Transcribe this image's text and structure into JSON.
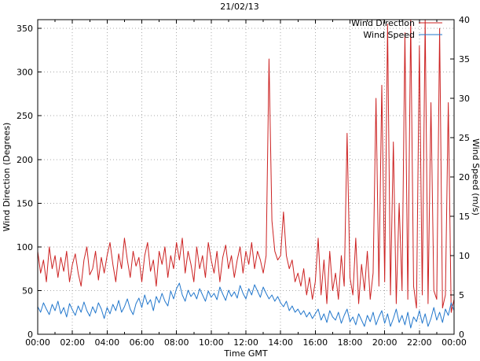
{
  "chart_data": {
    "type": "line",
    "title": "21/02/13",
    "xlabel": "Time GMT",
    "ylabel_left": "Wind Direction (Degrees)",
    "ylabel_right": "Wind Speed (m/s)",
    "grid": true,
    "legend_position": "top-right",
    "background_color": "#ffffff",
    "x_tick_labels": [
      "00:00",
      "02:00",
      "04:00",
      "06:00",
      "08:00",
      "10:00",
      "12:00",
      "14:00",
      "16:00",
      "18:00",
      "20:00",
      "22:00",
      "00:00"
    ],
    "x_minutes_interval": 10,
    "left_axis": {
      "min": 0,
      "max": 360,
      "ticks": [
        0,
        50,
        100,
        150,
        200,
        250,
        300,
        350
      ]
    },
    "right_axis": {
      "min": 0,
      "max": 40,
      "ticks": [
        0,
        5,
        10,
        15,
        20,
        25,
        30,
        35,
        40
      ]
    },
    "series": [
      {
        "name": "Wind Direction",
        "axis": "left",
        "color": "#cc2222",
        "values": [
          95,
          70,
          85,
          60,
          100,
          75,
          90,
          65,
          88,
          72,
          95,
          60,
          80,
          92,
          70,
          55,
          85,
          100,
          68,
          75,
          95,
          62,
          88,
          70,
          90,
          105,
          80,
          60,
          92,
          75,
          110,
          85,
          65,
          95,
          78,
          88,
          60,
          90,
          105,
          72,
          85,
          55,
          95,
          80,
          100,
          65,
          90,
          75,
          105,
          85,
          110,
          70,
          95,
          80,
          60,
          100,
          75,
          90,
          65,
          105,
          85,
          70,
          95,
          60,
          88,
          102,
          75,
          90,
          65,
          85,
          100,
          70,
          95,
          80,
          105,
          75,
          95,
          85,
          70,
          90,
          315,
          130,
          95,
          85,
          90,
          140,
          90,
          75,
          85,
          60,
          70,
          55,
          75,
          45,
          65,
          40,
          60,
          110,
          45,
          85,
          35,
          95,
          50,
          70,
          40,
          90,
          55,
          230,
          65,
          45,
          110,
          35,
          80,
          50,
          95,
          40,
          70,
          270,
          55,
          285,
          60,
          355,
          45,
          220,
          35,
          150,
          50,
          345,
          40,
          360,
          55,
          30,
          330,
          45,
          360,
          35,
          265,
          50,
          40,
          350,
          30,
          45,
          265,
          25,
          40
        ]
      },
      {
        "name": "Wind Speed",
        "axis": "right",
        "color": "#2277cc",
        "values": [
          3.5,
          2.8,
          4.0,
          3.2,
          2.5,
          3.8,
          3.0,
          4.2,
          2.6,
          3.4,
          2.2,
          3.9,
          3.1,
          2.4,
          3.6,
          2.8,
          4.1,
          3.0,
          2.3,
          3.5,
          2.7,
          4.0,
          3.2,
          2.0,
          3.4,
          2.6,
          3.8,
          3.0,
          4.3,
          2.8,
          3.5,
          4.5,
          3.2,
          2.5,
          3.9,
          4.6,
          3.4,
          5.0,
          3.8,
          4.4,
          3.0,
          4.8,
          4.0,
          5.2,
          4.2,
          3.6,
          5.5,
          4.5,
          5.8,
          6.5,
          5.0,
          4.2,
          5.6,
          4.8,
          5.3,
          4.5,
          5.8,
          5.0,
          4.2,
          5.5,
          4.7,
          5.2,
          4.4,
          6.0,
          5.1,
          4.3,
          5.6,
          4.8,
          5.4,
          4.6,
          6.2,
          5.2,
          4.5,
          5.8,
          5.0,
          6.3,
          5.5,
          4.7,
          6.0,
          5.2,
          4.5,
          5.0,
          4.2,
          4.8,
          4.0,
          3.5,
          4.2,
          3.0,
          3.6,
          2.8,
          3.2,
          2.5,
          3.0,
          2.2,
          2.8,
          2.0,
          2.6,
          3.2,
          1.8,
          2.6,
          1.5,
          3.0,
          2.2,
          1.8,
          2.8,
          1.4,
          2.4,
          3.2,
          1.6,
          2.2,
          1.2,
          2.6,
          1.8,
          1.0,
          2.4,
          1.6,
          2.8,
          1.2,
          2.2,
          3.0,
          1.4,
          2.6,
          1.0,
          2.0,
          3.2,
          1.5,
          2.4,
          1.2,
          2.8,
          0.8,
          2.2,
          1.6,
          3.0,
          1.4,
          2.6,
          1.0,
          2.0,
          3.4,
          1.8,
          2.8,
          1.5,
          3.2,
          2.4,
          4.0,
          3.0
        ]
      }
    ]
  }
}
